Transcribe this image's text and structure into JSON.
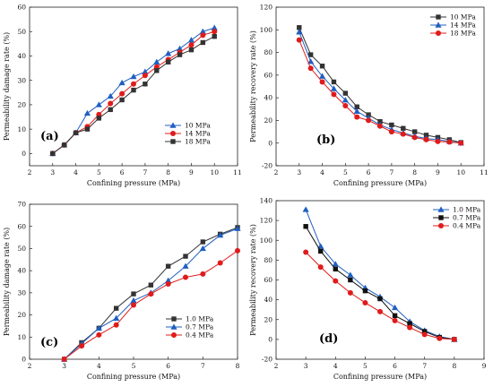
{
  "chart_data": [
    {
      "type": "line",
      "panel_label": "(a)",
      "xlabel": "Confining pressure (MPa)",
      "ylabel": "Permeability damage rate (%)",
      "xlim": [
        2,
        11
      ],
      "ylim": [
        -5,
        60
      ],
      "xticks": [
        2,
        3,
        4,
        5,
        6,
        7,
        8,
        9,
        10,
        11
      ],
      "yticks": [
        0,
        10,
        20,
        30,
        40,
        50,
        60
      ],
      "legend_position": "bottom-right",
      "series": [
        {
          "name": "10 MPa",
          "color": "#1f5fc0",
          "marker": "triangle",
          "x": [
            3,
            3.5,
            4,
            4.5,
            5,
            5.5,
            6,
            6.5,
            7,
            7.5,
            8,
            8.5,
            9,
            9.5,
            10
          ],
          "y": [
            0,
            3.5,
            8.5,
            16.5,
            20,
            23.5,
            29,
            31.5,
            33.5,
            37.5,
            41,
            43,
            46.5,
            50,
            51.5
          ]
        },
        {
          "name": "14 MPa",
          "color": "#e01b1b",
          "marker": "circle",
          "x": [
            3,
            3.5,
            4,
            4.5,
            5,
            5.5,
            6,
            6.5,
            7,
            7.5,
            8,
            8.5,
            9,
            9.5,
            10
          ],
          "y": [
            0,
            3.5,
            8.5,
            11,
            16,
            20.5,
            24.5,
            28.5,
            32,
            35.5,
            38.5,
            41.5,
            44.5,
            48.5,
            50
          ]
        },
        {
          "name": "18 MPa",
          "color": "#333333",
          "marker": "square",
          "x": [
            3,
            3.5,
            4,
            4.5,
            5,
            5.5,
            6,
            6.5,
            7,
            7.5,
            8,
            8.5,
            9,
            9.5,
            10
          ],
          "y": [
            0,
            3.5,
            8.5,
            10,
            14.5,
            18,
            22,
            26,
            28.5,
            34,
            37.5,
            40.5,
            42.5,
            45.5,
            48
          ]
        }
      ]
    },
    {
      "type": "line",
      "panel_label": "(b)",
      "xlabel": "Confining pressure (MPa)",
      "ylabel": "Permeability recovery rate (%)",
      "xlim": [
        2,
        11
      ],
      "ylim": [
        -20,
        120
      ],
      "xticks": [
        2,
        3,
        4,
        5,
        6,
        7,
        8,
        9,
        10,
        11
      ],
      "yticks": [
        -20,
        0,
        20,
        40,
        60,
        80,
        100,
        120
      ],
      "legend_position": "top-right",
      "series": [
        {
          "name": "10 MPa",
          "color": "#333333",
          "marker": "square",
          "x": [
            3,
            3.5,
            4,
            4.5,
            5,
            5.5,
            6,
            6.5,
            7,
            7.5,
            8,
            8.5,
            9,
            9.5,
            10
          ],
          "y": [
            102,
            78,
            68,
            54,
            44,
            32,
            25,
            19,
            16,
            13,
            10,
            7,
            5,
            3,
            0.5
          ]
        },
        {
          "name": "14 MPa",
          "color": "#1f5fc0",
          "marker": "triangle",
          "x": [
            3,
            3.5,
            4,
            4.5,
            5,
            5.5,
            6,
            6.5,
            7,
            7.5,
            8,
            8.5,
            9,
            9.5,
            10
          ],
          "y": [
            98,
            72,
            59,
            48,
            38,
            28,
            22,
            16,
            12,
            9,
            6,
            4,
            3,
            1.5,
            0
          ]
        },
        {
          "name": "18 MPa",
          "color": "#e01b1b",
          "marker": "circle",
          "x": [
            3,
            3.5,
            4,
            4.5,
            5,
            5.5,
            6,
            6.5,
            7,
            7.5,
            8,
            8.5,
            9,
            9.5,
            10
          ],
          "y": [
            91,
            66,
            54,
            43,
            33,
            23,
            20,
            15,
            10,
            8,
            5,
            3,
            1.5,
            1,
            0
          ]
        }
      ]
    },
    {
      "type": "line",
      "panel_label": "(c)",
      "xlabel": "Confining pressure (MPa)",
      "ylabel": "Permeability damage rate (%)",
      "xlim": [
        2,
        8
      ],
      "ylim": [
        0,
        70
      ],
      "xticks": [
        2,
        3,
        4,
        5,
        6,
        7,
        8
      ],
      "yticks": [
        0,
        10,
        20,
        30,
        40,
        50,
        60,
        70
      ],
      "legend_position": "bottom-right",
      "series": [
        {
          "name": "1.0 MPa",
          "color": "#333333",
          "marker": "square",
          "x": [
            3,
            3.5,
            4,
            4.5,
            5,
            5.5,
            6,
            6.5,
            7,
            7.5,
            8
          ],
          "y": [
            0,
            7.5,
            14,
            23,
            29.5,
            33.5,
            42,
            46.5,
            53,
            56.5,
            59.5
          ]
        },
        {
          "name": "0.7 MPa",
          "color": "#1f5fc0",
          "marker": "triangle",
          "x": [
            3,
            3.5,
            4,
            4.5,
            5,
            5.5,
            6,
            6.5,
            7,
            7.5,
            8
          ],
          "y": [
            0,
            7,
            14,
            18.5,
            26.5,
            30,
            35.5,
            42,
            50,
            56,
            59
          ]
        },
        {
          "name": "0.4 MPa",
          "color": "#e01b1b",
          "marker": "circle",
          "x": [
            3,
            3.5,
            4,
            4.5,
            5,
            5.5,
            6,
            6.5,
            7,
            7.5,
            8
          ],
          "y": [
            0,
            6,
            11,
            15.5,
            24.5,
            29.5,
            34,
            37,
            38.5,
            43.5,
            49
          ]
        }
      ]
    },
    {
      "type": "line",
      "panel_label": "(d)",
      "xlabel": "Confining pressure (MPa)",
      "ylabel": "Permeability recovery rate (%)",
      "xlim": [
        2,
        9
      ],
      "ylim": [
        -20,
        140
      ],
      "xticks": [
        2,
        3,
        4,
        5,
        6,
        7,
        8,
        9
      ],
      "yticks": [
        -20,
        0,
        20,
        40,
        60,
        80,
        100,
        120,
        140
      ],
      "legend_position": "top-right",
      "series": [
        {
          "name": "1.0 MPa",
          "color": "#1f5fc0",
          "marker": "triangle",
          "x": [
            3,
            3.5,
            4,
            4.5,
            5,
            5.5,
            6,
            6.5,
            7,
            7.5,
            8
          ],
          "y": [
            131,
            94,
            76,
            65,
            52,
            43,
            32,
            18,
            9,
            3,
            0
          ]
        },
        {
          "name": "0.7 MPa",
          "color": "#111111",
          "marker": "square",
          "x": [
            3,
            3.5,
            4,
            4.5,
            5,
            5.5,
            6,
            6.5,
            7,
            7.5,
            8
          ],
          "y": [
            114,
            89,
            71,
            60,
            49,
            41,
            24,
            16,
            8,
            2,
            0
          ]
        },
        {
          "name": "0.4 MPa",
          "color": "#e01b1b",
          "marker": "circle",
          "x": [
            3,
            3.5,
            4,
            4.5,
            5,
            5.5,
            6,
            6.5,
            7,
            7.5,
            8
          ],
          "y": [
            88,
            73,
            59,
            47,
            37,
            28,
            19,
            12,
            5,
            1,
            0
          ]
        }
      ]
    }
  ]
}
